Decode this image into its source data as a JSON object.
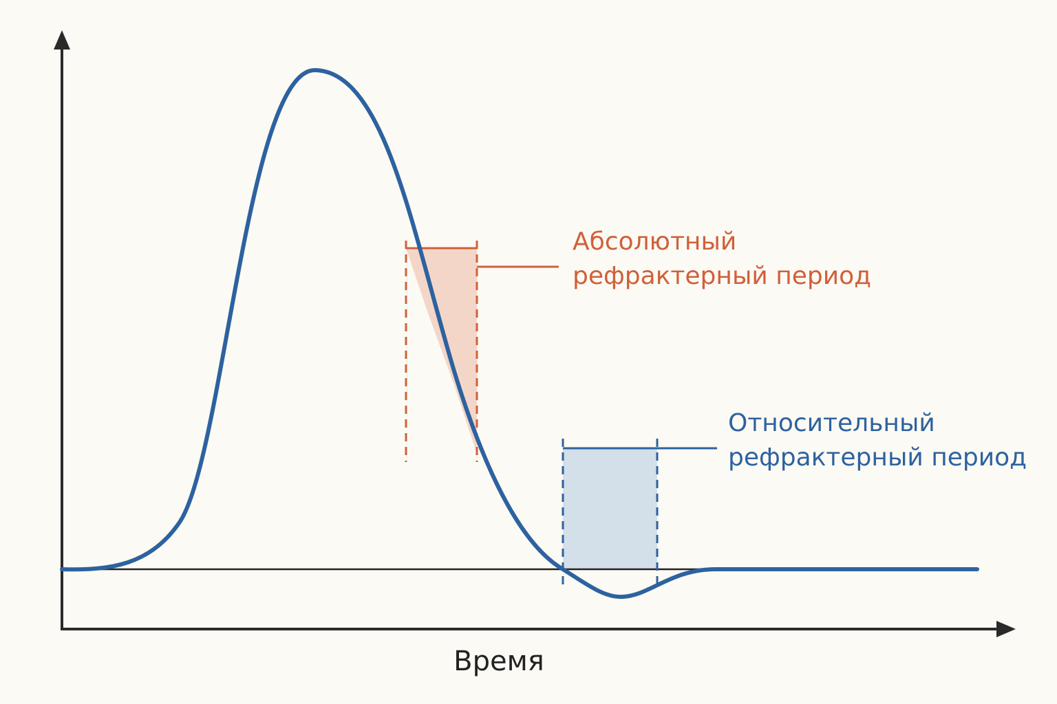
{
  "axis": {
    "x_label": "Время"
  },
  "annotations": {
    "absolute": {
      "lines": [
        "Абсолютный",
        "рефрактерный период"
      ]
    },
    "relative": {
      "lines": [
        "Относительный",
        "рефрактерный период"
      ]
    }
  }
}
